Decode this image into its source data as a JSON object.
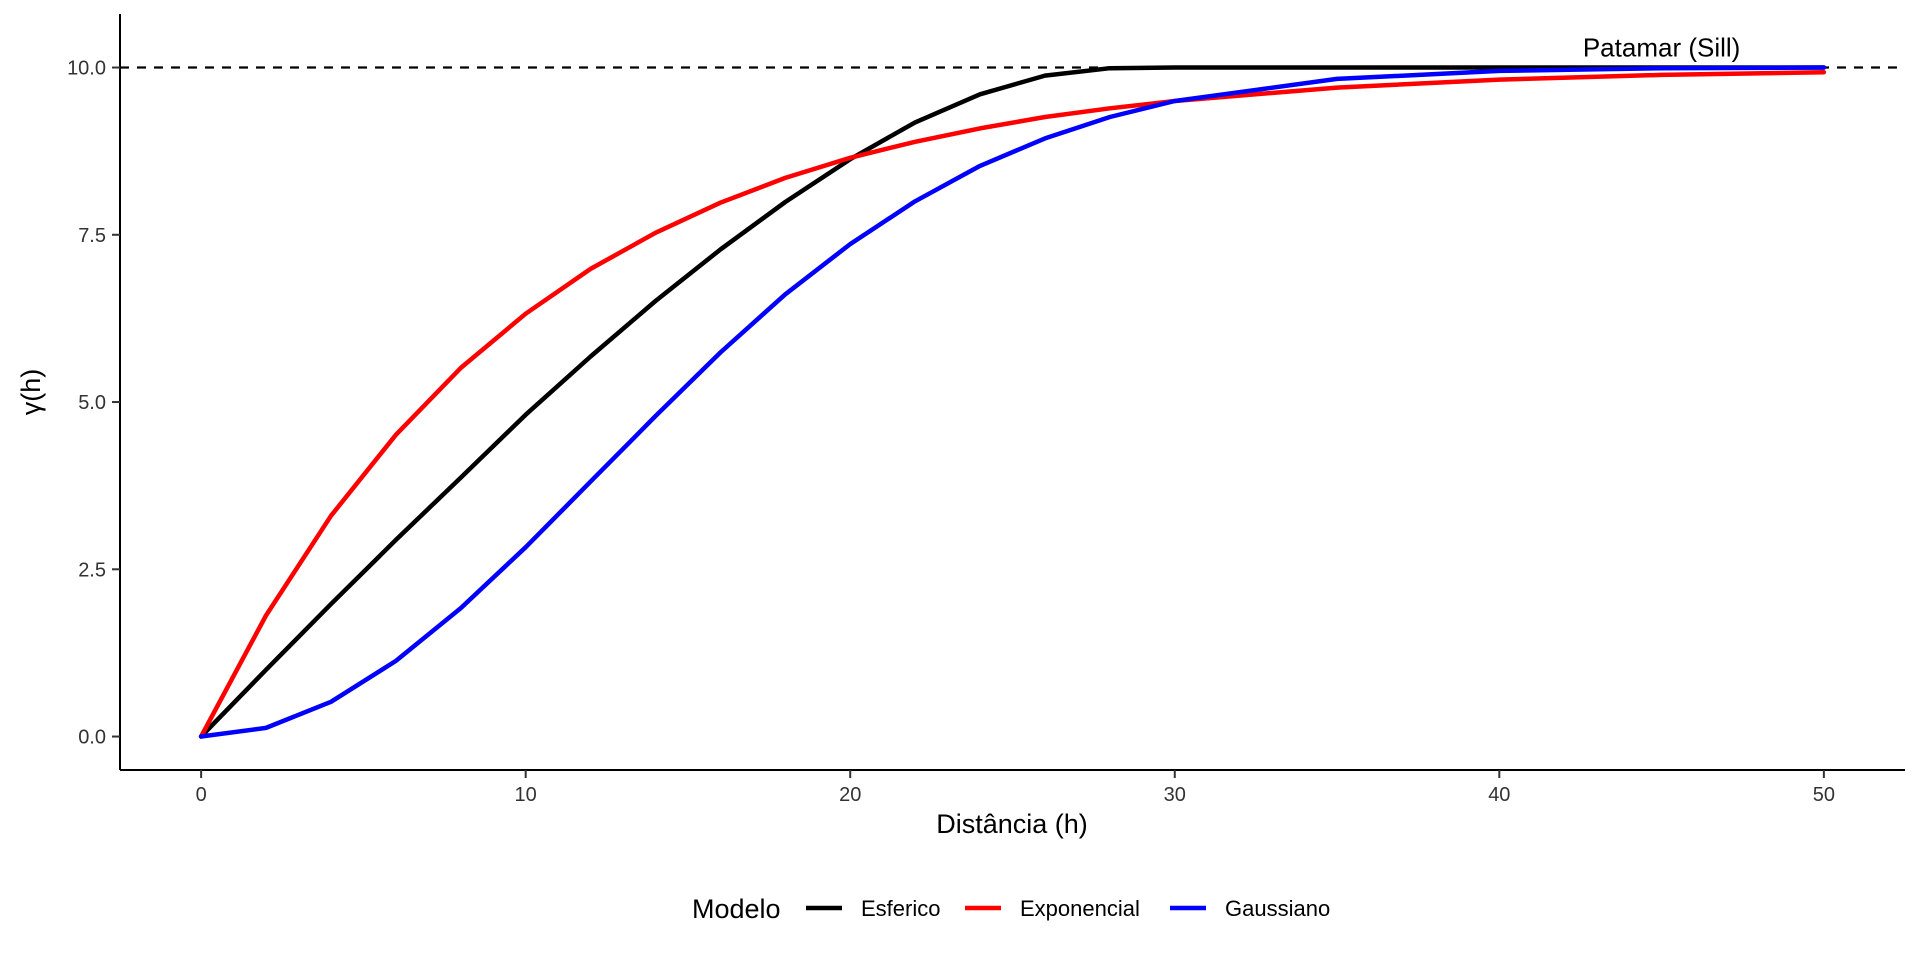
{
  "chart_data": {
    "type": "line",
    "title": "",
    "xlabel": "Distância (h)",
    "ylabel": "γ(h)",
    "xlim": [
      -2.5,
      52.5
    ],
    "ylim": [
      -0.5,
      10.8
    ],
    "xticks": [
      0,
      10,
      20,
      30,
      40,
      50
    ],
    "xtick_labels": [
      "0",
      "10",
      "20",
      "30",
      "40",
      "50"
    ],
    "yticks": [
      0,
      2.5,
      5,
      7.5,
      10
    ],
    "ytick_labels": [
      "0.0",
      "2.5",
      "5.0",
      "7.5",
      "10.0"
    ],
    "grid": false,
    "legend": {
      "title": "Modelo",
      "placement": "bottom",
      "entries": [
        "Esferico",
        "Exponencial",
        "Gaussiano"
      ]
    },
    "sill_line": {
      "y": 10,
      "style": "dashed",
      "color": "#000000"
    },
    "annotations": [
      {
        "text": "Patamar (Sill)",
        "x": 45,
        "y": 10.3
      }
    ],
    "series": [
      {
        "name": "Esferico",
        "color": "#000000",
        "x": [
          0,
          2,
          4,
          6,
          8,
          10,
          12,
          14,
          16,
          18,
          20,
          22,
          24,
          26,
          28,
          30,
          35,
          40,
          45,
          50
        ],
        "values": [
          0,
          0.997,
          1.98,
          2.94,
          3.87,
          4.81,
          5.68,
          6.51,
          7.28,
          7.99,
          8.63,
          9.18,
          9.6,
          9.88,
          9.99,
          10,
          10,
          10,
          10,
          10
        ]
      },
      {
        "name": "Exponencial",
        "color": "#ff0000",
        "x": [
          0,
          2,
          4,
          6,
          8,
          10,
          12,
          14,
          16,
          18,
          20,
          22,
          24,
          26,
          28,
          30,
          35,
          40,
          45,
          50
        ],
        "values": [
          0,
          1.81,
          3.3,
          4.51,
          5.51,
          6.32,
          6.99,
          7.53,
          7.98,
          8.35,
          8.65,
          8.89,
          9.09,
          9.26,
          9.39,
          9.5,
          9.7,
          9.82,
          9.89,
          9.93
        ]
      },
      {
        "name": "Gaussiano",
        "color": "#0000ff",
        "x": [
          0,
          2,
          4,
          6,
          8,
          10,
          12,
          14,
          16,
          18,
          20,
          22,
          24,
          26,
          28,
          30,
          35,
          40,
          45,
          50
        ],
        "values": [
          0,
          0.13,
          0.52,
          1.13,
          1.92,
          2.83,
          3.81,
          4.79,
          5.74,
          6.61,
          7.36,
          8.0,
          8.53,
          8.94,
          9.26,
          9.5,
          9.83,
          9.95,
          9.99,
          10
        ]
      }
    ]
  }
}
